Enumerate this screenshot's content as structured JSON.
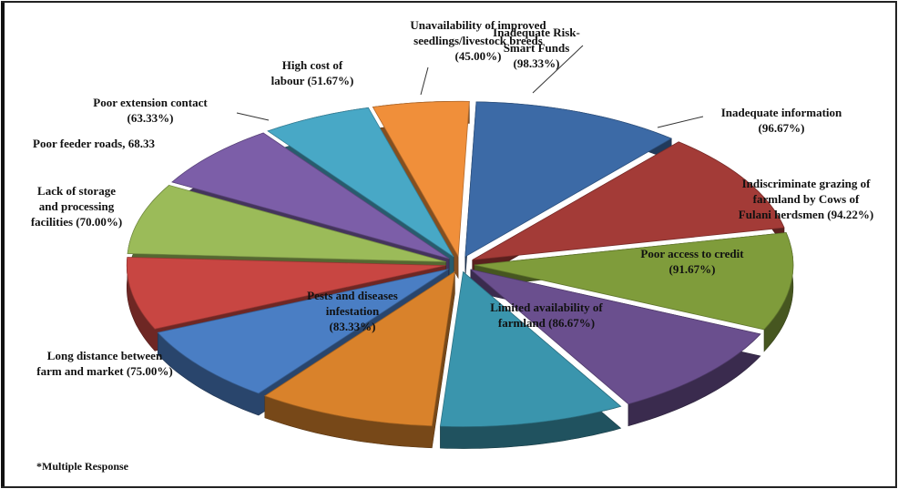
{
  "chart_data": {
    "type": "pie",
    "title": "",
    "footnote": "*Multiple Response",
    "slices": [
      {
        "label_lines": [
          "Inadequate  Risk-",
          "Smart Funds",
          "(98.33%)"
        ],
        "value": 98.33,
        "color": "#3c6aa6"
      },
      {
        "label_lines": [
          "Inadequate  information",
          "(96.67%)"
        ],
        "value": 96.67,
        "color": "#a33b37"
      },
      {
        "label_lines": [
          "Indiscriminate grazing of",
          "farmland  by Cows of",
          "Fulani herdsmen (94.22%)"
        ],
        "value": 94.22,
        "color": "#7f9c3b"
      },
      {
        "label_lines": [
          "Poor access to credit",
          "(91.67%)"
        ],
        "value": 91.67,
        "color": "#6a4f8e"
      },
      {
        "label_lines": [
          "Limited availability of",
          "farmland  (86.67%)"
        ],
        "value": 86.67,
        "color": "#3a95ad"
      },
      {
        "label_lines": [
          "Pests and diseases",
          "infestation",
          "(83.33%)"
        ],
        "value": 83.33,
        "color": "#d9822b"
      },
      {
        "label_lines": [
          "Long distance between",
          "farm and market (75.00%)"
        ],
        "value": 75.0,
        "color": "#4a7ec4"
      },
      {
        "label_lines": [
          "Lack of storage",
          "and  processing",
          "facilities (70.00%)"
        ],
        "value": 70.0,
        "color": "#c84642"
      },
      {
        "label_lines": [
          "Poor feeder roads, 68.33"
        ],
        "value": 68.33,
        "color": "#9bbb59"
      },
      {
        "label_lines": [
          "Poor extension contact",
          "(63.33%)"
        ],
        "value": 63.33,
        "color": "#7c5ea8"
      },
      {
        "label_lines": [
          "High cost of",
          "labour (51.67%)"
        ],
        "value": 51.67,
        "color": "#48a8c6"
      },
      {
        "label_lines": [
          "Unavailability of improved",
          "seedlings/livestock breeds",
          "(45.00%)"
        ],
        "value": 45.0,
        "color": "#f08f3a"
      }
    ]
  }
}
